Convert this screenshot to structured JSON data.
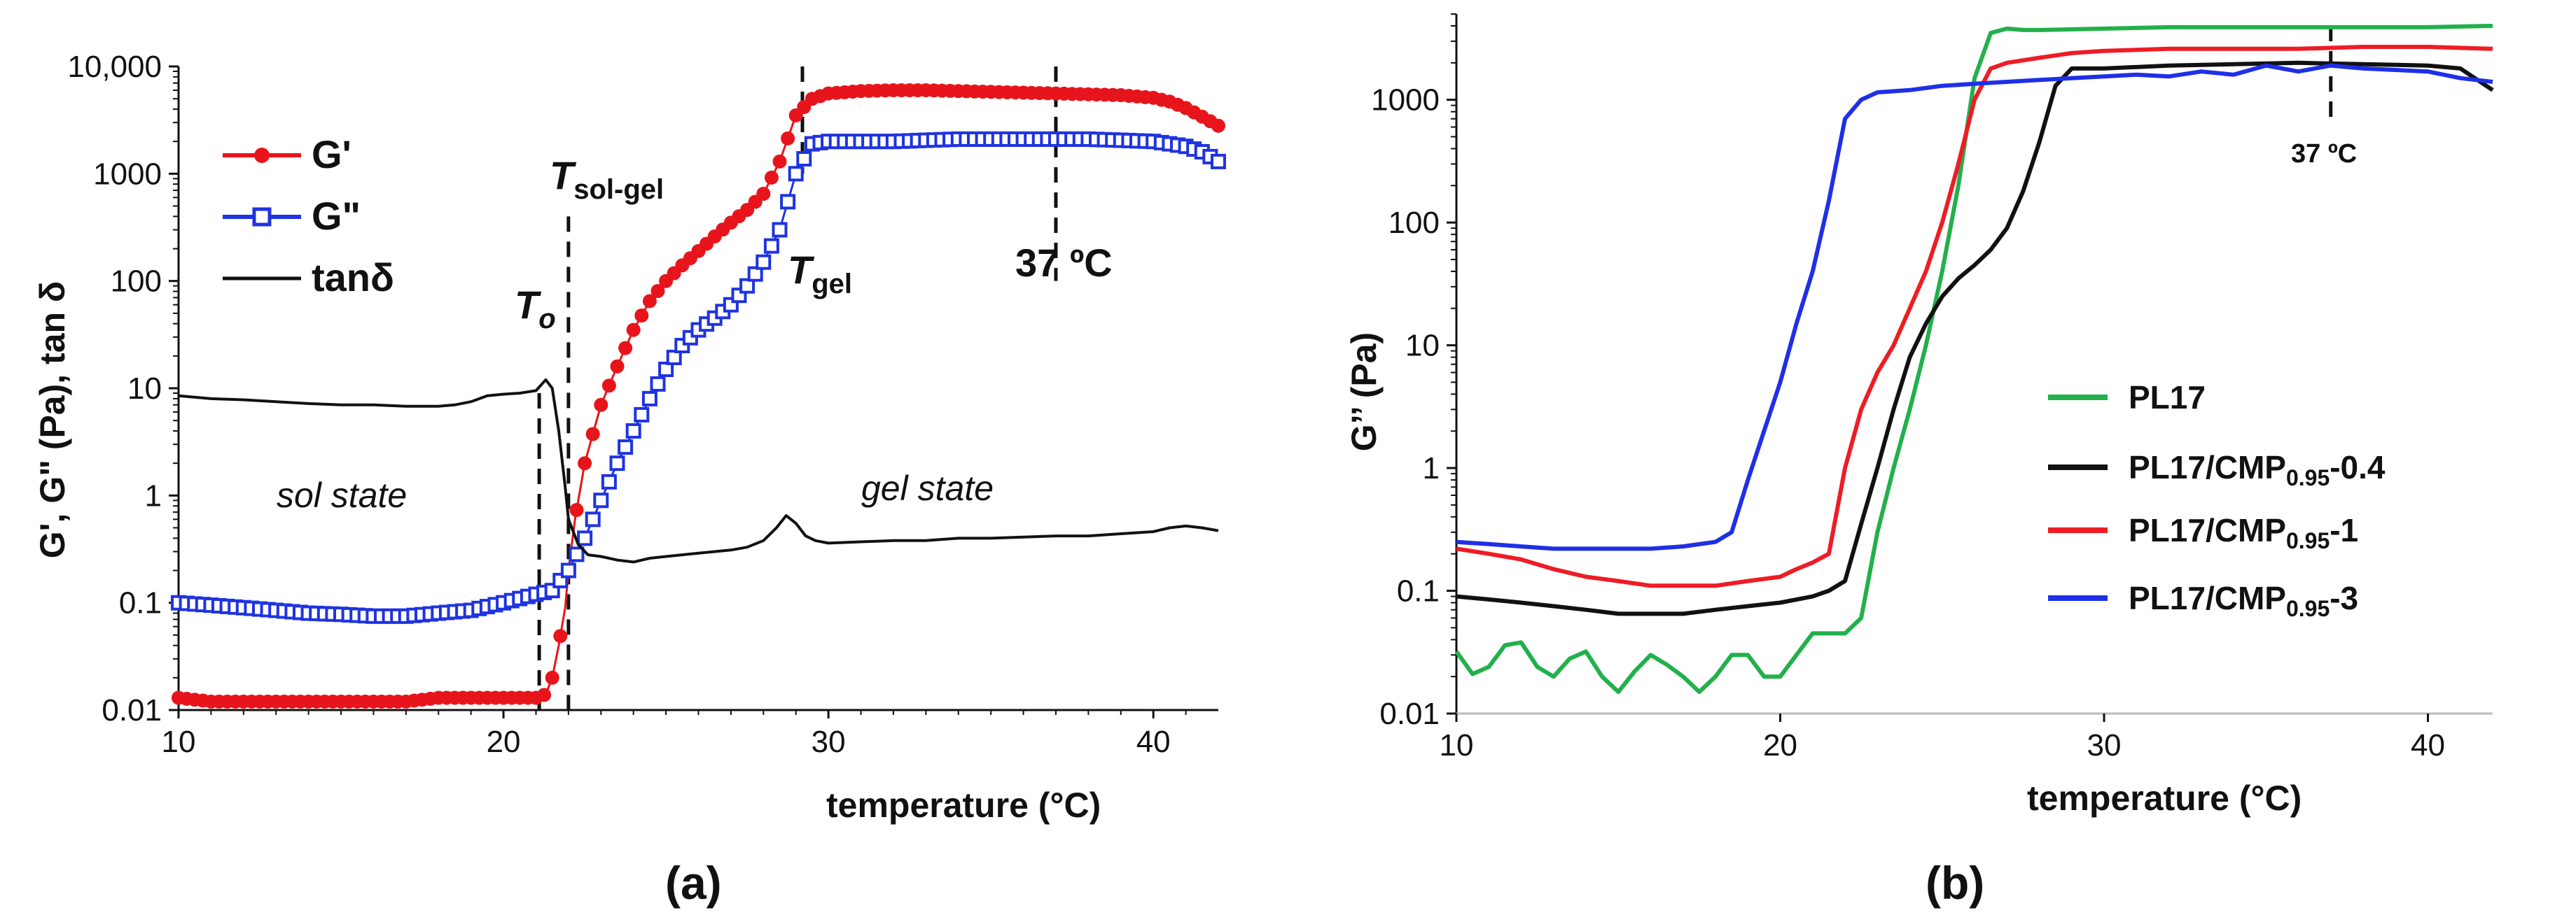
{
  "chart_data": [
    {
      "type": "line",
      "panel_label": "(a)",
      "xlabel": "temperature (°C)",
      "ylabel": "G', G\" (Pa), tan δ",
      "yscale": "log",
      "xlim": [
        10,
        42
      ],
      "ylim": [
        0.01,
        10000
      ],
      "xticks": [
        10,
        20,
        30,
        40
      ],
      "xtick_labels": [
        "10",
        "20",
        "30",
        "40"
      ],
      "yticks": [
        0.01,
        0.1,
        1,
        10,
        100,
        1000,
        10000
      ],
      "ytick_labels": [
        "0.01",
        "0.1",
        "1",
        "10",
        "100",
        "1000",
        "10,000"
      ],
      "legend": [
        "G'",
        "G\"",
        "tanδ"
      ],
      "series": [
        {
          "name": "G'",
          "color": "#e8141b",
          "marker": "filled-circle",
          "x": [
            10.0,
            11.0,
            12.0,
            13.0,
            14.0,
            15.0,
            16.0,
            17.0,
            18.0,
            19.0,
            20.0,
            21.0,
            21.3,
            21.5,
            21.7,
            21.9,
            22.0,
            22.2,
            22.5,
            23.0,
            23.5,
            24.0,
            24.5,
            25.0,
            25.5,
            26.0,
            26.5,
            27.0,
            27.5,
            28.0,
            28.5,
            29.0,
            29.5,
            30.0,
            31.0,
            32.0,
            33.0,
            34.0,
            35.0,
            36.0,
            37.0,
            38.0,
            39.0,
            40.0,
            40.5,
            41.0,
            41.5,
            42.0
          ],
          "values": [
            0.013,
            0.012,
            0.012,
            0.012,
            0.012,
            0.012,
            0.012,
            0.012,
            0.013,
            0.013,
            0.013,
            0.013,
            0.014,
            0.02,
            0.04,
            0.09,
            0.2,
            0.6,
            2.0,
            7.0,
            16.0,
            35.0,
            65.0,
            100.0,
            140.0,
            190.0,
            260.0,
            350.0,
            460.0,
            650.0,
            1300.0,
            3500.0,
            5000.0,
            5600.0,
            5900.0,
            6000.0,
            6000.0,
            5900.0,
            5800.0,
            5700.0,
            5600.0,
            5500.0,
            5400.0,
            5100.0,
            4700.0,
            4100.0,
            3400.0,
            2800.0
          ]
        },
        {
          "name": "G\"",
          "color": "#1f33e0",
          "marker": "open-square",
          "x": [
            10.0,
            11.0,
            12.0,
            13.0,
            14.0,
            15.0,
            16.0,
            17.0,
            18.0,
            19.0,
            20.0,
            21.0,
            21.5,
            22.0,
            22.5,
            23.0,
            23.5,
            24.0,
            24.5,
            25.0,
            25.5,
            26.0,
            26.5,
            27.0,
            27.5,
            28.0,
            28.5,
            29.0,
            29.5,
            30.0,
            31.0,
            32.0,
            33.0,
            34.0,
            35.0,
            36.0,
            37.0,
            38.0,
            39.0,
            40.0,
            40.5,
            41.0,
            41.5,
            42.0
          ],
          "values": [
            0.1,
            0.095,
            0.09,
            0.085,
            0.08,
            0.078,
            0.075,
            0.075,
            0.08,
            0.085,
            0.1,
            0.12,
            0.13,
            0.2,
            0.4,
            0.9,
            2.0,
            4.0,
            8.0,
            15.0,
            25.0,
            35.0,
            45.0,
            60.0,
            90.0,
            150.0,
            300.0,
            1000.0,
            1900.0,
            2000.0,
            2000.0,
            2000.0,
            2050.0,
            2100.0,
            2100.0,
            2100.0,
            2100.0,
            2100.0,
            2050.0,
            2000.0,
            1900.0,
            1800.0,
            1600.0,
            1300.0
          ]
        },
        {
          "name": "tanδ",
          "color": "#111111",
          "marker": "none",
          "x": [
            10.0,
            11.0,
            12.0,
            13.0,
            14.0,
            15.0,
            16.0,
            17.0,
            18.0,
            18.5,
            19.0,
            19.5,
            20.0,
            20.5,
            21.0,
            21.3,
            21.5,
            21.7,
            21.9,
            22.0,
            22.3,
            22.6,
            23.0,
            23.5,
            24.0,
            24.5,
            25.0,
            25.5,
            26.0,
            26.5,
            27.0,
            27.5,
            28.0,
            28.4,
            28.7,
            29.0,
            29.3,
            29.6,
            30.0,
            31.0,
            32.0,
            33.0,
            34.0,
            35.0,
            36.0,
            37.0,
            38.0,
            39.0,
            40.0,
            40.5,
            41.0,
            41.5,
            42.0
          ],
          "values": [
            8.5,
            8.0,
            7.8,
            7.5,
            7.2,
            7.0,
            7.0,
            6.8,
            6.8,
            7.0,
            7.5,
            8.5,
            8.8,
            9.0,
            9.5,
            12.0,
            10.0,
            4.0,
            1.2,
            0.6,
            0.35,
            0.28,
            0.27,
            0.25,
            0.24,
            0.26,
            0.27,
            0.28,
            0.29,
            0.3,
            0.31,
            0.33,
            0.38,
            0.5,
            0.65,
            0.55,
            0.42,
            0.38,
            0.36,
            0.37,
            0.38,
            0.38,
            0.4,
            0.4,
            0.41,
            0.42,
            0.42,
            0.44,
            0.46,
            0.5,
            0.52,
            0.5,
            0.47
          ]
        }
      ],
      "vlines": [
        {
          "x": 21.1,
          "label": "T",
          "sub": "o"
        },
        {
          "x": 22.0,
          "label": "T",
          "sub": "sol-gel"
        },
        {
          "x": 29.2,
          "label": "T",
          "sub": "gel"
        },
        {
          "x": 37.0,
          "label": "37 ºC"
        }
      ],
      "annotations": [
        "sol  state",
        "gel  state"
      ]
    },
    {
      "type": "line",
      "panel_label": "(b)",
      "xlabel": "temperature (°C)",
      "ylabel": "G’’ (Pa)",
      "yscale": "log",
      "xlim": [
        10,
        42
      ],
      "ylim": [
        0.01,
        5000
      ],
      "xticks": [
        10,
        20,
        30,
        40
      ],
      "xtick_labels": [
        "10",
        "20",
        "30",
        "40"
      ],
      "yticks": [
        0.01,
        0.1,
        1,
        10,
        100,
        1000
      ],
      "ytick_labels": [
        "0.01",
        "0.1",
        "1",
        "10",
        "100",
        "1000"
      ],
      "legend": [
        "PL17",
        "PL17/CMP0.95-0.4",
        "PL17/CMP0.95-1",
        "PL17/CMP0.95-3"
      ],
      "series": [
        {
          "name": "PL17",
          "color": "#22b04b",
          "x": [
            10.0,
            10.5,
            11.0,
            11.5,
            12.0,
            12.5,
            13.0,
            13.5,
            14.0,
            14.5,
            15.0,
            15.5,
            16.0,
            16.5,
            17.0,
            17.5,
            18.0,
            18.5,
            19.0,
            19.5,
            20.0,
            20.5,
            21.0,
            21.5,
            22.0,
            22.5,
            23.0,
            23.5,
            24.0,
            24.5,
            25.0,
            25.5,
            26.0,
            26.5,
            27.0,
            27.5,
            28.0,
            30.0,
            32.0,
            34.0,
            36.0,
            38.0,
            40.0,
            42.0
          ],
          "values": [
            0.032,
            0.021,
            0.024,
            0.036,
            0.038,
            0.024,
            0.02,
            0.028,
            0.032,
            0.02,
            0.015,
            0.022,
            0.03,
            0.025,
            0.02,
            0.015,
            0.02,
            0.03,
            0.03,
            0.02,
            0.02,
            0.03,
            0.045,
            0.045,
            0.045,
            0.06,
            0.3,
            1.0,
            3.0,
            10.0,
            40.0,
            200.0,
            1500.0,
            3500.0,
            3800.0,
            3700.0,
            3700.0,
            3800.0,
            3900.0,
            3900.0,
            3900.0,
            3900.0,
            3900.0,
            4000.0
          ]
        },
        {
          "name": "PL17/CMP0.95-0.4",
          "color": "#111111",
          "x": [
            10.0,
            11.0,
            12.0,
            13.0,
            14.0,
            15.0,
            16.0,
            17.0,
            18.0,
            19.0,
            20.0,
            21.0,
            21.5,
            22.0,
            22.5,
            23.0,
            23.5,
            24.0,
            24.5,
            25.0,
            25.5,
            26.0,
            26.5,
            27.0,
            27.5,
            28.0,
            28.5,
            29.0,
            29.5,
            30.0,
            32.0,
            34.0,
            36.0,
            38.0,
            40.0,
            41.0,
            42.0
          ],
          "values": [
            0.09,
            0.085,
            0.08,
            0.075,
            0.07,
            0.065,
            0.065,
            0.065,
            0.07,
            0.075,
            0.08,
            0.09,
            0.1,
            0.12,
            0.35,
            1.0,
            3.0,
            8.0,
            15.0,
            25.0,
            35.0,
            45.0,
            60.0,
            90.0,
            180.0,
            450.0,
            1300.0,
            1800.0,
            1800.0,
            1800.0,
            1900.0,
            1950.0,
            2000.0,
            1950.0,
            1900.0,
            1800.0,
            1200.0
          ]
        },
        {
          "name": "PL17/CMP0.95-1",
          "color": "#ee1c25",
          "x": [
            10.0,
            11.0,
            12.0,
            13.0,
            14.0,
            15.0,
            16.0,
            17.0,
            18.0,
            19.0,
            20.0,
            20.5,
            21.0,
            21.5,
            22.0,
            22.5,
            23.0,
            23.5,
            24.0,
            24.5,
            25.0,
            25.5,
            26.0,
            26.5,
            27.0,
            28.0,
            29.0,
            30.0,
            32.0,
            34.0,
            36.0,
            38.0,
            40.0,
            42.0
          ],
          "values": [
            0.22,
            0.2,
            0.18,
            0.15,
            0.13,
            0.12,
            0.11,
            0.11,
            0.11,
            0.12,
            0.13,
            0.15,
            0.17,
            0.2,
            1.0,
            3.0,
            6.0,
            10.0,
            20.0,
            40.0,
            100.0,
            300.0,
            1000.0,
            1800.0,
            2000.0,
            2200.0,
            2400.0,
            2500.0,
            2600.0,
            2600.0,
            2600.0,
            2700.0,
            2700.0,
            2600.0
          ]
        },
        {
          "name": "PL17/CMP0.95-3",
          "color": "#1f2fe8",
          "x": [
            10.0,
            11.0,
            12.0,
            13.0,
            14.0,
            15.0,
            16.0,
            17.0,
            18.0,
            18.5,
            19.0,
            19.5,
            20.0,
            20.5,
            21.0,
            21.5,
            22.0,
            22.5,
            23.0,
            24.0,
            25.0,
            26.0,
            27.0,
            28.0,
            29.0,
            30.0,
            31.0,
            32.0,
            33.0,
            34.0,
            35.0,
            36.0,
            37.0,
            38.0,
            39.0,
            40.0,
            41.0,
            42.0
          ],
          "values": [
            0.25,
            0.24,
            0.23,
            0.22,
            0.22,
            0.22,
            0.22,
            0.23,
            0.25,
            0.3,
            0.8,
            2.0,
            5.0,
            15.0,
            40.0,
            150.0,
            700.0,
            1000.0,
            1150.0,
            1200.0,
            1300.0,
            1350.0,
            1400.0,
            1450.0,
            1500.0,
            1550.0,
            1600.0,
            1550.0,
            1700.0,
            1600.0,
            1900.0,
            1700.0,
            1900.0,
            1800.0,
            1750.0,
            1700.0,
            1500.0,
            1400.0
          ]
        }
      ],
      "vlines": [
        {
          "x": 37.0,
          "label": "37 ºC"
        }
      ]
    }
  ]
}
